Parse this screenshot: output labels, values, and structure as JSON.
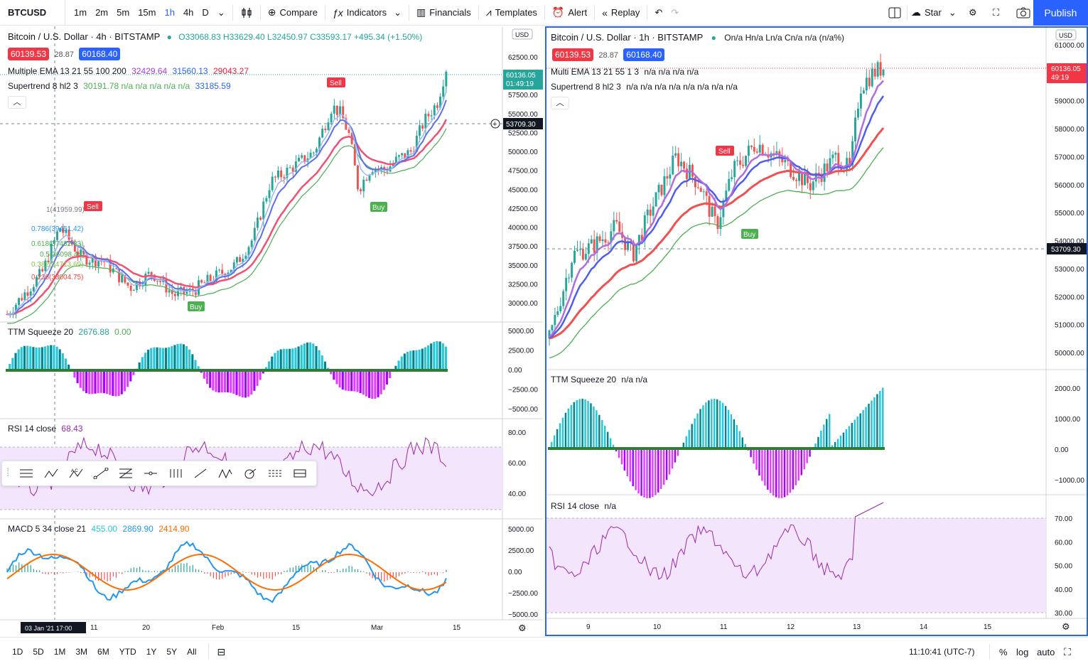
{
  "toolbar": {
    "symbol": "BTCUSD",
    "intervals": [
      "1m",
      "2m",
      "5m",
      "15m",
      "1h",
      "4h",
      "D"
    ],
    "active_interval": "1h",
    "compare": "Compare",
    "indicators": "Indicators",
    "financials": "Financials",
    "templates": "Templates",
    "alert": "Alert",
    "replay": "Replay",
    "star": "Star",
    "publish": "Publish"
  },
  "left_chart": {
    "title": "Bitcoin / U.S. Dollar · 4h · BITSTAMP",
    "ohlc": "O33068.83 H33629.40 L32450.97 C33593.17 +495.34 (+1.50%)",
    "bid": "60139.53",
    "spread": "28.87",
    "ask": "60168.40",
    "ema_label": "Multiple EMA 13 21 55 100 200",
    "ema_values": [
      "32429.64",
      "31560.13",
      "29043.27"
    ],
    "supertrend_label": "Supertrend 8 hl2 3",
    "supertrend_values": "30191.78 n/a n/a n/a n/a n/a",
    "supertrend_value2": "33185.59",
    "currency": "USD",
    "price_axis": [
      "62500.00",
      "60000.00",
      "57500.00",
      "55000.00",
      "52500.00",
      "50000.00",
      "47500.00",
      "45000.00",
      "42500.00",
      "40000.00",
      "37500.00",
      "35000.00",
      "32500.00",
      "30000.00"
    ],
    "last_price": "60136.05",
    "countdown": "01:49:19",
    "crosshair_price": "53709.30",
    "time_axis": [
      "11",
      "20",
      "Feb",
      "15",
      "Mar",
      "15"
    ],
    "crosshair_time": "03 Jan '21   17:00",
    "fib_labels": [
      "1(41959.99)",
      "0.786(39451.42)",
      "0.618(37482.83)",
      "0.5(36098.44)",
      "0.382(34713.69)",
      "0.236(33004.75)"
    ],
    "ttm_label": "TTM Squeeze 20",
    "ttm_values": [
      "2676.88",
      "0.00"
    ],
    "ttm_axis": [
      "5000.00",
      "2500.00",
      "0.00",
      "−2500.00",
      "−5000.00"
    ],
    "rsi_label": "RSI 14 close",
    "rsi_value": "68.43",
    "rsi_axis": [
      "80.00",
      "60.00",
      "40.00"
    ],
    "macd_label": "MACD 5 34 close 21",
    "macd_values": [
      "455.00",
      "2869.90",
      "2414.90"
    ],
    "macd_axis": [
      "5000.00",
      "2500.00",
      "0.00",
      "−2500.00",
      "−5000.00"
    ],
    "signals": {
      "sell": "Sell",
      "buy": "Buy"
    }
  },
  "right_chart": {
    "title": "Bitcoin / U.S. Dollar · 1h · BITSTAMP",
    "ohlc": "On/a Hn/a Ln/a Cn/a n/a (n/a%)",
    "bid": "60139.53",
    "spread": "28.87",
    "ask": "60168.40",
    "ema_label": "Multi EMA 13 21 55 1 3",
    "ema_values": "n/a n/a n/a n/a",
    "supertrend_label": "Supertrend 8 hl2 3",
    "supertrend_values": "n/a n/a n/a n/a n/a n/a n/a n/a",
    "currency": "USD",
    "price_axis": [
      "61000.00",
      "60000.00",
      "59000.00",
      "58000.00",
      "57000.00",
      "56000.00",
      "55000.00",
      "54000.00",
      "53000.00",
      "52000.00",
      "51000.00",
      "50000.00"
    ],
    "last_price": "60136.05",
    "countdown": "49:19",
    "crosshair_price": "53709.30",
    "time_axis": [
      "9",
      "10",
      "11",
      "12",
      "13",
      "14",
      "15"
    ],
    "ttm_label": "TTM Squeeze 20",
    "ttm_values": "n/a n/a",
    "ttm_axis": [
      "2000.00",
      "1000.00",
      "0.00",
      "−1000.00"
    ],
    "rsi_label": "RSI 14 close",
    "rsi_value": "n/a",
    "rsi_axis": [
      "70.00",
      "60.00",
      "50.00",
      "40.00",
      "30.00"
    ],
    "signals": {
      "sell": "Sell",
      "buy": "Buy"
    }
  },
  "bottom": {
    "ranges": [
      "1D",
      "5D",
      "1M",
      "3M",
      "6M",
      "YTD",
      "1Y",
      "5Y",
      "All"
    ],
    "clock": "11:10:41 (UTC-7)",
    "percent": "%",
    "log": "log",
    "auto": "auto"
  },
  "colors": {
    "accent": "#2962ff",
    "bid": "#f23645",
    "ask": "#2962ff",
    "up": "#26a69a",
    "down": "#ef5350",
    "ema_fast": "#b06de0",
    "ema_mid": "#4d5df0",
    "ema_slow": "#f05050",
    "supertrend_up": "#4caf50",
    "rsi_line": "#9c27b0"
  }
}
